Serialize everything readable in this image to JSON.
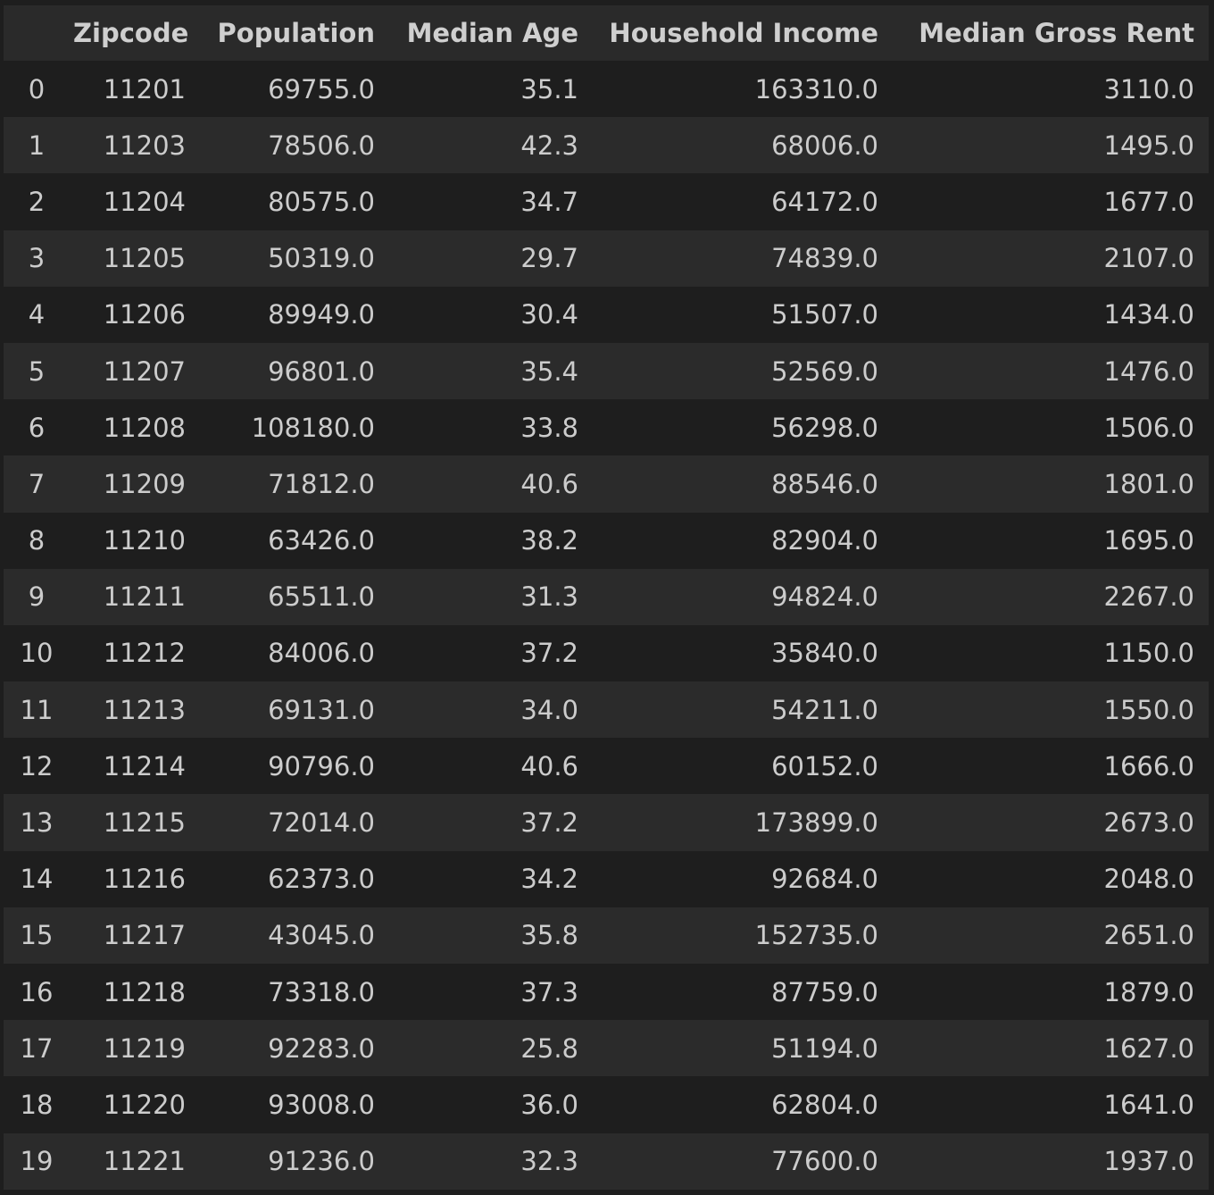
{
  "table": {
    "columns": [
      "",
      "Zipcode",
      "Population",
      "Median Age",
      "Household Income",
      "Median Gross Rent"
    ],
    "rows": [
      [
        "0",
        "11201",
        "69755.0",
        "35.1",
        "163310.0",
        "3110.0"
      ],
      [
        "1",
        "11203",
        "78506.0",
        "42.3",
        "68006.0",
        "1495.0"
      ],
      [
        "2",
        "11204",
        "80575.0",
        "34.7",
        "64172.0",
        "1677.0"
      ],
      [
        "3",
        "11205",
        "50319.0",
        "29.7",
        "74839.0",
        "2107.0"
      ],
      [
        "4",
        "11206",
        "89949.0",
        "30.4",
        "51507.0",
        "1434.0"
      ],
      [
        "5",
        "11207",
        "96801.0",
        "35.4",
        "52569.0",
        "1476.0"
      ],
      [
        "6",
        "11208",
        "108180.0",
        "33.8",
        "56298.0",
        "1506.0"
      ],
      [
        "7",
        "11209",
        "71812.0",
        "40.6",
        "88546.0",
        "1801.0"
      ],
      [
        "8",
        "11210",
        "63426.0",
        "38.2",
        "82904.0",
        "1695.0"
      ],
      [
        "9",
        "11211",
        "65511.0",
        "31.3",
        "94824.0",
        "2267.0"
      ],
      [
        "10",
        "11212",
        "84006.0",
        "37.2",
        "35840.0",
        "1150.0"
      ],
      [
        "11",
        "11213",
        "69131.0",
        "34.0",
        "54211.0",
        "1550.0"
      ],
      [
        "12",
        "11214",
        "90796.0",
        "40.6",
        "60152.0",
        "1666.0"
      ],
      [
        "13",
        "11215",
        "72014.0",
        "37.2",
        "173899.0",
        "2673.0"
      ],
      [
        "14",
        "11216",
        "62373.0",
        "34.2",
        "92684.0",
        "2048.0"
      ],
      [
        "15",
        "11217",
        "43045.0",
        "35.8",
        "152735.0",
        "2651.0"
      ],
      [
        "16",
        "11218",
        "73318.0",
        "37.3",
        "87759.0",
        "1879.0"
      ],
      [
        "17",
        "11219",
        "92283.0",
        "25.8",
        "51194.0",
        "1627.0"
      ],
      [
        "18",
        "11220",
        "93008.0",
        "36.0",
        "62804.0",
        "1641.0"
      ],
      [
        "19",
        "11221",
        "91236.0",
        "32.3",
        "77600.0",
        "1937.0"
      ]
    ]
  },
  "colors": {
    "background": "#1e1e1e",
    "header_background": "#2a2a2a",
    "row_alt_background": "#2b2b2b",
    "text": "#cccccc"
  }
}
